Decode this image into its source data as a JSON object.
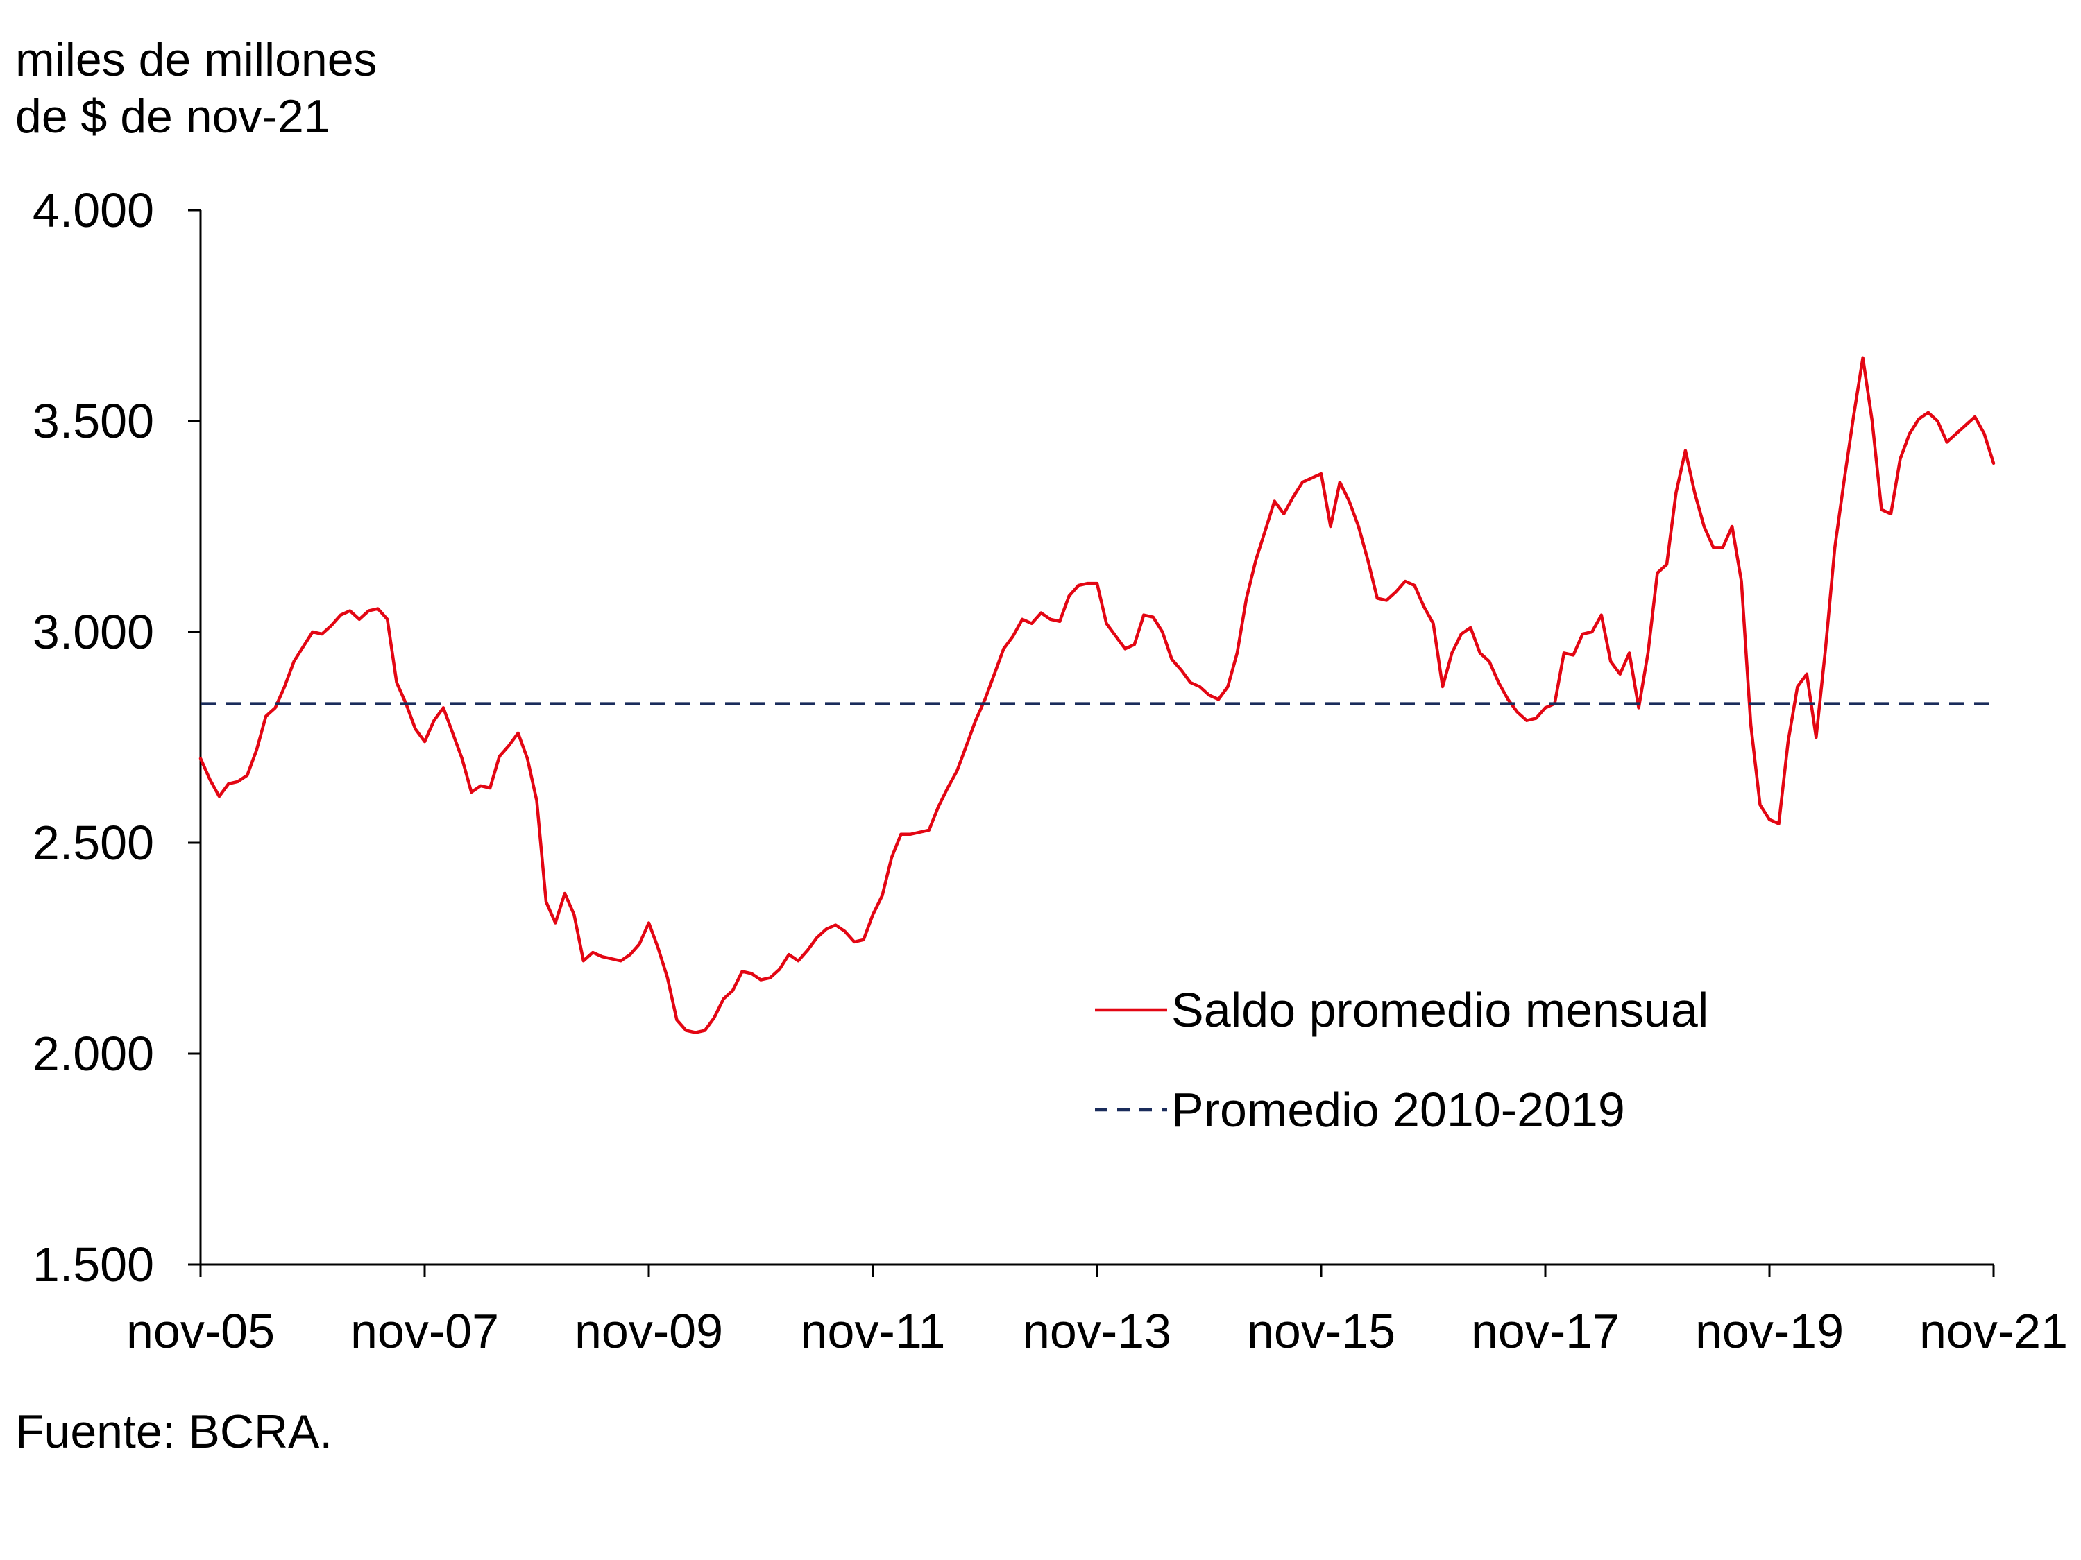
{
  "chart_data": {
    "type": "line",
    "title": "",
    "ylabel": [
      "miles de millones",
      "de $ de nov-21"
    ],
    "xlabel": "",
    "ylim": [
      1500,
      4000
    ],
    "yticks": [
      4000,
      3500,
      3000,
      2500,
      2000,
      1500
    ],
    "ytick_labels": [
      "4.000",
      "3.500",
      "3.000",
      "2.500",
      "2.000",
      "1.500"
    ],
    "x_start": "nov-05",
    "x_end": "nov-21",
    "xticks": [
      "nov-05",
      "nov-07",
      "nov-09",
      "nov-11",
      "nov-13",
      "nov-15",
      "nov-17",
      "nov-19",
      "nov-21"
    ],
    "grid": false,
    "legend_position": "center-right",
    "colors": {
      "series_line": "#e30613",
      "average_line": "#1a2c5b",
      "axis": "#000000"
    },
    "series": [
      {
        "name": "Saldo promedio mensual",
        "style": "solid",
        "x_months": [
          0,
          1,
          2,
          3,
          4,
          5,
          6,
          7,
          8,
          9,
          10,
          11,
          12,
          13,
          14,
          15,
          16,
          17,
          18,
          19,
          20,
          21,
          22,
          23,
          24,
          25,
          26,
          27,
          28,
          29,
          30,
          31,
          32,
          33,
          34,
          35,
          36,
          37,
          38,
          39,
          40,
          41,
          42,
          43,
          44,
          45,
          46,
          47,
          48,
          49,
          50,
          51,
          52,
          53,
          54,
          55,
          56,
          57,
          58,
          59,
          60,
          61,
          62,
          63,
          64,
          65,
          66,
          67,
          68,
          69,
          70,
          71,
          72,
          73,
          74,
          75,
          76,
          77,
          78,
          79,
          80,
          81,
          82,
          83,
          84,
          85,
          86,
          87,
          88,
          89,
          90,
          91,
          92,
          93,
          94,
          95,
          96,
          97,
          98,
          99,
          100,
          101,
          102,
          103,
          104,
          105,
          106,
          107,
          108,
          109,
          110,
          111,
          112,
          113,
          114,
          115,
          116,
          117,
          118,
          119,
          120,
          121,
          122,
          123,
          124,
          125,
          126,
          127,
          128,
          129,
          130,
          131,
          132,
          133,
          134,
          135,
          136,
          137,
          138,
          139,
          140,
          141,
          142,
          143,
          144,
          145,
          146,
          147,
          148,
          149,
          150,
          151,
          152,
          153,
          154,
          155,
          156,
          157,
          158,
          159,
          160,
          161,
          162,
          163,
          164,
          165,
          166,
          167,
          168,
          169,
          170,
          171,
          172,
          173,
          174,
          175,
          176,
          177,
          178,
          179,
          180,
          181,
          182,
          183,
          184,
          185,
          186,
          187,
          188,
          189,
          190,
          191,
          192
        ],
        "values": [
          2700,
          2650,
          2610,
          2640,
          2645,
          2660,
          2720,
          2800,
          2820,
          2870,
          2930,
          2965,
          3000,
          2995,
          3015,
          3040,
          3050,
          3030,
          3050,
          3055,
          3030,
          2880,
          2830,
          2770,
          2740,
          2790,
          2820,
          2760,
          2700,
          2620,
          2635,
          2630,
          2705,
          2730,
          2760,
          2700,
          2600,
          2360,
          2310,
          2380,
          2330,
          2220,
          2240,
          2230,
          2225,
          2220,
          2235,
          2260,
          2310,
          2250,
          2180,
          2080,
          2055,
          2050,
          2055,
          2085,
          2130,
          2150,
          2195,
          2190,
          2175,
          2180,
          2200,
          2235,
          2220,
          2245,
          2275,
          2295,
          2305,
          2290,
          2265,
          2270,
          2330,
          2375,
          2465,
          2520,
          2520,
          2525,
          2530,
          2585,
          2630,
          2670,
          2730,
          2790,
          2840,
          2900,
          2960,
          2990,
          3030,
          3020,
          3045,
          3030,
          3025,
          3085,
          3110,
          3115,
          3115,
          3020,
          2990,
          2960,
          2970,
          3040,
          3035,
          3000,
          2935,
          2910,
          2880,
          2870,
          2850,
          2840,
          2870,
          2950,
          3080,
          3170,
          3240,
          3310,
          3280,
          3320,
          3355,
          3365,
          3375,
          3250,
          3355,
          3310,
          3250,
          3170,
          3080,
          3075,
          3095,
          3120,
          3110,
          3060,
          3020,
          2870,
          2950,
          2995,
          3010,
          2950,
          2930,
          2880,
          2840,
          2810,
          2790,
          2795,
          2820,
          2830,
          2950,
          2945,
          2995,
          3000,
          3040,
          2930,
          2900,
          2950,
          2820,
          2950,
          3140,
          3160,
          3330,
          3430,
          3330,
          3250,
          3200,
          3200,
          3250,
          3120,
          2780,
          2590,
          2555,
          2545,
          2740,
          2870,
          2900,
          2750,
          2960,
          3200,
          3360,
          3510,
          3650,
          3500,
          3290,
          3280,
          3410,
          3470,
          3505,
          3520,
          3500,
          3450,
          3470,
          3490,
          3510,
          3470,
          3400
        ]
      },
      {
        "name": "Promedio 2010-2019",
        "style": "dashed",
        "constant_value": 2830
      }
    ],
    "legend": [
      "Saldo promedio mensual",
      "Promedio 2010-2019"
    ]
  },
  "source_note": "Fuente: BCRA."
}
